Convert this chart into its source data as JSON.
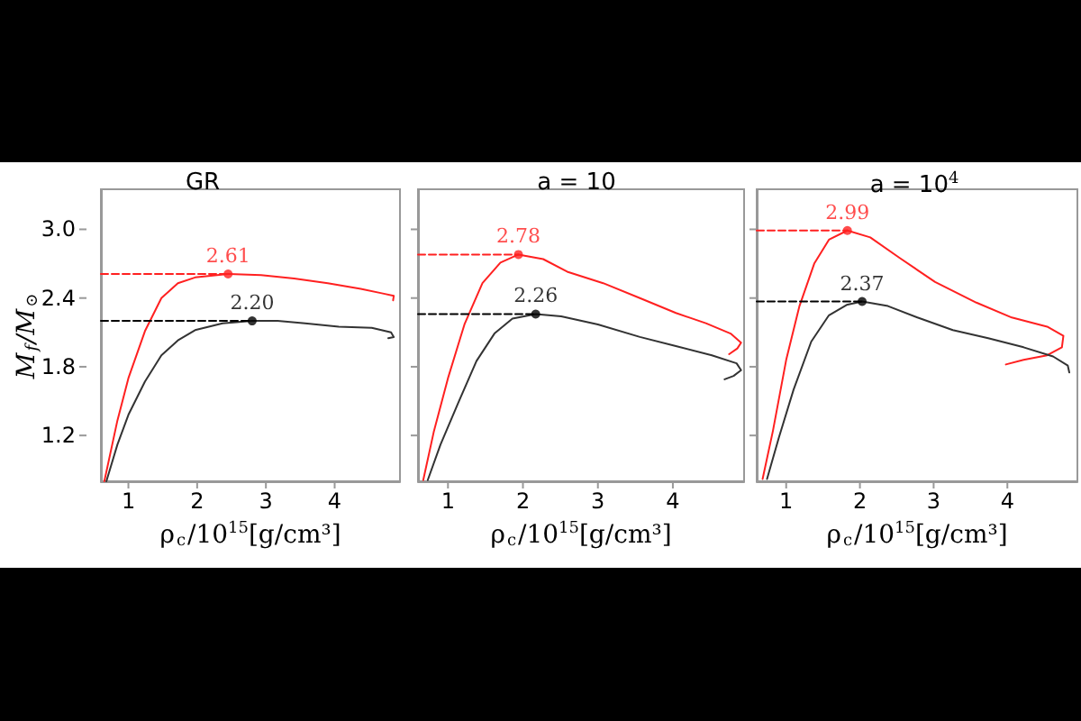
{
  "chart_data": [
    {
      "type": "line",
      "title": "GR",
      "xlabel": "ρ$_{c}$/10$^{15}$[g/cm³]",
      "ylabel": "M$_{f}$/M$_{⊙}$",
      "xlim": [
        0.6,
        4.95
      ],
      "ylim": [
        0.8,
        3.35
      ],
      "xticks": [
        1,
        2,
        3,
        4
      ],
      "yticks": [
        1.2,
        1.8,
        2.4,
        {
          "value": 3,
          "label": "3.0"
        }
      ],
      "grid": false,
      "series": [
        {
          "color": "#ff2020",
          "marker": "none",
          "line_style": "solid",
          "x": [
            0.65,
            0.84,
            1.0,
            1.24,
            1.48,
            1.72,
            1.97,
            2.45,
            2.93,
            3.41,
            3.9,
            4.38,
            4.7,
            4.86,
            4.85
          ],
          "values": [
            0.8,
            1.33,
            1.7,
            2.11,
            2.4,
            2.53,
            2.58,
            2.61,
            2.6,
            2.57,
            2.53,
            2.48,
            2.44,
            2.42,
            2.38
          ]
        },
        {
          "color": "#333333",
          "marker": "none",
          "line_style": "solid",
          "x": [
            0.68,
            0.84,
            1.0,
            1.24,
            1.48,
            1.72,
            1.97,
            2.37,
            2.8,
            3.17,
            3.57,
            4.06,
            4.54,
            4.82,
            4.86,
            4.78
          ],
          "values": [
            0.8,
            1.12,
            1.38,
            1.67,
            1.9,
            2.03,
            2.12,
            2.18,
            2.2,
            2.2,
            2.18,
            2.15,
            2.14,
            2.1,
            2.06,
            2.05
          ]
        },
        {
          "type": "line",
          "color": "#ff2020",
          "marker": "none",
          "line_style": "dashed",
          "x": [
            0.6,
            2.45
          ],
          "values": [
            2.61,
            2.61
          ]
        },
        {
          "type": "line",
          "color": "#000000",
          "marker": "none",
          "line_style": "dashed",
          "x": [
            0.6,
            2.8
          ],
          "values": [
            2.2,
            2.2
          ]
        },
        {
          "type": "scatter",
          "color": "#ff2020",
          "marker": "circle",
          "x": [
            2.45
          ],
          "values": [
            2.61
          ],
          "value_labels": [
            "2.61"
          ]
        },
        {
          "type": "scatter",
          "color": "#000000",
          "marker": "circle",
          "x": [
            2.8
          ],
          "values": [
            2.2
          ],
          "value_labels": [
            "2.20"
          ]
        }
      ]
    },
    {
      "type": "line",
      "title": "a = 10",
      "xlabel": "ρ$_{c}$/10$^{15}$[g/cm³]",
      "xlim": [
        0.6,
        4.95
      ],
      "ylim": [
        0.8,
        3.35
      ],
      "xticks": [
        1,
        2,
        3,
        4
      ],
      "yticks": [
        1.2,
        1.8,
        2.4,
        3
      ],
      "tick_labels": "x",
      "grid": false,
      "series": [
        {
          "color": "#ff2020",
          "marker": "none",
          "line_style": "solid",
          "x": [
            0.67,
            0.81,
            1.0,
            1.22,
            1.46,
            1.7,
            1.94,
            2.27,
            2.59,
            3.07,
            3.56,
            4.04,
            4.44,
            4.77,
            4.91,
            4.86,
            4.75
          ],
          "values": [
            0.81,
            1.23,
            1.7,
            2.17,
            2.53,
            2.71,
            2.78,
            2.74,
            2.63,
            2.53,
            2.4,
            2.27,
            2.18,
            2.09,
            2.01,
            1.96,
            1.91
          ]
        },
        {
          "color": "#333333",
          "marker": "none",
          "line_style": "solid",
          "x": [
            0.73,
            0.9,
            1.14,
            1.38,
            1.62,
            1.86,
            2.17,
            2.51,
            3.0,
            3.56,
            4.04,
            4.52,
            4.85,
            4.91,
            4.81,
            4.69
          ],
          "values": [
            0.81,
            1.12,
            1.49,
            1.85,
            2.09,
            2.22,
            2.26,
            2.24,
            2.17,
            2.06,
            1.98,
            1.9,
            1.83,
            1.77,
            1.72,
            1.69
          ]
        },
        {
          "type": "line",
          "color": "#ff2020",
          "marker": "none",
          "line_style": "dashed",
          "x": [
            0.6,
            1.94
          ],
          "values": [
            2.78,
            2.78
          ]
        },
        {
          "type": "line",
          "color": "#000000",
          "marker": "none",
          "line_style": "dashed",
          "x": [
            0.6,
            2.17
          ],
          "values": [
            2.26,
            2.26
          ]
        },
        {
          "type": "scatter",
          "color": "#ff2020",
          "marker": "circle",
          "x": [
            1.94
          ],
          "values": [
            2.78
          ],
          "value_labels": [
            "2.78"
          ]
        },
        {
          "type": "scatter",
          "color": "#000000",
          "marker": "circle",
          "x": [
            2.17
          ],
          "values": [
            2.26
          ],
          "value_labels": [
            "2.26"
          ]
        }
      ]
    },
    {
      "type": "line",
      "title": "a = 10$^{4}$",
      "xlabel": "ρ$_{c}$/10$^{15}$[g/cm³]",
      "xlim": [
        0.6,
        4.95
      ],
      "ylim": [
        0.8,
        3.35
      ],
      "xticks": [
        1,
        2,
        3,
        4
      ],
      "yticks": [
        1.2,
        1.8,
        2.4,
        3
      ],
      "tick_labels": "x",
      "grid": false,
      "series": [
        {
          "color": "#ff2020",
          "marker": "none",
          "line_style": "solid",
          "x": [
            0.68,
            0.82,
            1.0,
            1.18,
            1.38,
            1.58,
            1.83,
            2.14,
            2.54,
            3.02,
            3.58,
            4.06,
            4.54,
            4.76,
            4.74,
            4.54,
            4.22,
            3.98
          ],
          "values": [
            0.82,
            1.24,
            1.86,
            2.33,
            2.7,
            2.91,
            2.99,
            2.93,
            2.75,
            2.54,
            2.36,
            2.23,
            2.15,
            2.07,
            1.97,
            1.9,
            1.86,
            1.82
          ]
        },
        {
          "color": "#333333",
          "marker": "none",
          "line_style": "solid",
          "x": [
            0.74,
            0.9,
            1.1,
            1.34,
            1.58,
            1.82,
            2.03,
            2.38,
            2.78,
            3.26,
            3.74,
            4.22,
            4.62,
            4.82,
            4.84
          ],
          "values": [
            0.82,
            1.18,
            1.6,
            2.02,
            2.25,
            2.34,
            2.37,
            2.33,
            2.23,
            2.12,
            2.05,
            1.97,
            1.89,
            1.81,
            1.75
          ]
        },
        {
          "type": "line",
          "color": "#ff2020",
          "marker": "none",
          "line_style": "dashed",
          "x": [
            0.6,
            1.83
          ],
          "values": [
            2.99,
            2.99
          ]
        },
        {
          "type": "line",
          "color": "#000000",
          "marker": "none",
          "line_style": "dashed",
          "x": [
            0.6,
            2.03
          ],
          "values": [
            2.37,
            2.37
          ]
        },
        {
          "type": "scatter",
          "color": "#ff2020",
          "marker": "circle",
          "x": [
            1.83
          ],
          "values": [
            2.99
          ],
          "value_labels": [
            "2.99"
          ]
        },
        {
          "type": "scatter",
          "color": "#000000",
          "marker": "circle",
          "x": [
            2.03
          ],
          "values": [
            2.37
          ],
          "value_labels": [
            "2.37"
          ]
        }
      ]
    }
  ]
}
